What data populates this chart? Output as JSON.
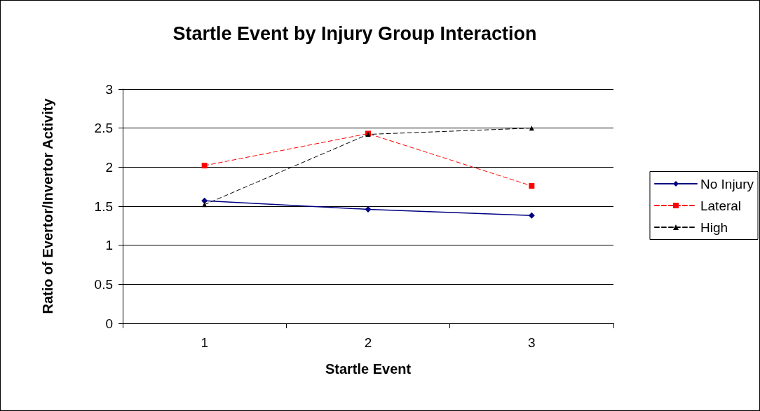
{
  "chart_data": {
    "type": "line",
    "title": "Startle Event by Injury Group Interaction",
    "xlabel": "Startle Event",
    "ylabel": "Ratio of Evertor/Invertor Activity",
    "categories": [
      "1",
      "2",
      "3"
    ],
    "series": [
      {
        "name": "No Injury",
        "color": "#000080",
        "values": [
          1.57,
          1.46,
          1.38
        ],
        "marker": "diamond",
        "line_style": "solid"
      },
      {
        "name": "Lateral",
        "color": "#ff0000",
        "values": [
          2.02,
          2.43,
          1.76
        ],
        "marker": "square",
        "line_style": "dashed"
      },
      {
        "name": "High",
        "color": "#000000",
        "values": [
          1.52,
          2.42,
          2.5
        ],
        "marker": "triangle",
        "line_style": "dashed"
      }
    ],
    "ylim": [
      0,
      3
    ],
    "yticks": [
      0,
      0.5,
      1,
      1.5,
      2,
      2.5,
      3
    ],
    "grid": "y",
    "legend": "right"
  }
}
